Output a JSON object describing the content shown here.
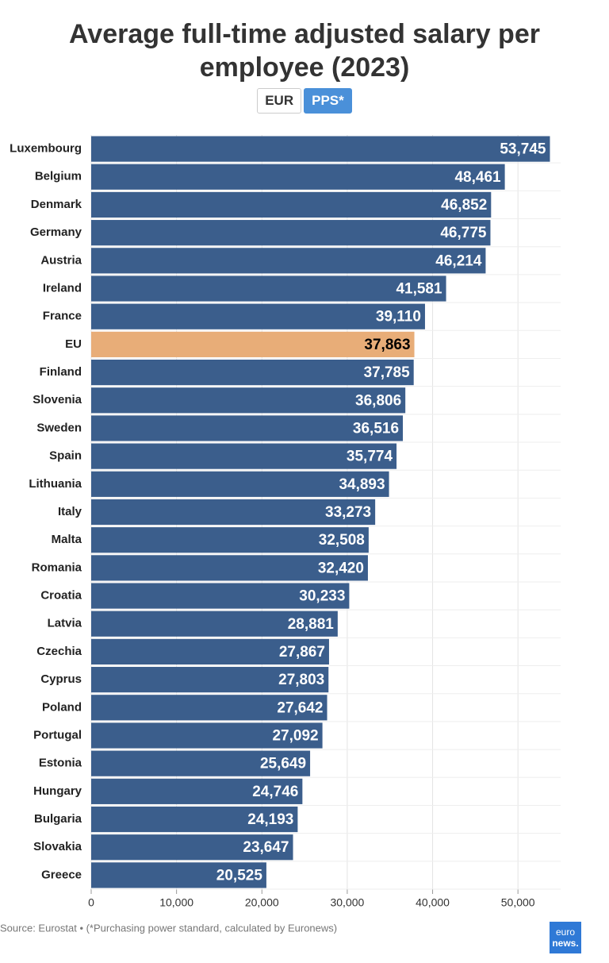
{
  "chart_data": {
    "type": "bar",
    "orientation": "horizontal",
    "title": "Average full-time adjusted salary per employee (2023)",
    "buttons": [
      "EUR",
      "PPS*"
    ],
    "categories": [
      "Luxembourg",
      "Belgium",
      "Denmark",
      "Germany",
      "Austria",
      "Ireland",
      "France",
      "EU",
      "Finland",
      "Slovenia",
      "Sweden",
      "Spain",
      "Lithuania",
      "Italy",
      "Malta",
      "Romania",
      "Croatia",
      "Latvia",
      "Czechia",
      "Cyprus",
      "Poland",
      "Portugal",
      "Estonia",
      "Hungary",
      "Bulgaria",
      "Slovakia",
      "Greece"
    ],
    "values": [
      53745,
      48461,
      46852,
      46775,
      46214,
      41581,
      39110,
      37863,
      37785,
      36806,
      36516,
      35774,
      34893,
      33273,
      32508,
      32420,
      30233,
      28881,
      27867,
      27803,
      27642,
      27092,
      25649,
      24746,
      24193,
      23647,
      20525
    ],
    "value_labels": [
      "53,745",
      "48,461",
      "46,852",
      "46,775",
      "46,214",
      "41,581",
      "39,110",
      "37,863",
      "37,785",
      "36,806",
      "36,516",
      "35,774",
      "34,893",
      "33,273",
      "32,508",
      "32,420",
      "30,233",
      "28,881",
      "27,867",
      "27,803",
      "27,642",
      "27,092",
      "25,649",
      "24,746",
      "24,193",
      "23,647",
      "20,525"
    ],
    "colors": [
      "#3b5e8c",
      "#3b5e8c",
      "#3b5e8c",
      "#3b5e8c",
      "#3b5e8c",
      "#3b5e8c",
      "#3b5e8c",
      "#e8ad78",
      "#3b5e8c",
      "#3b5e8c",
      "#3b5e8c",
      "#3b5e8c",
      "#3b5e8c",
      "#3b5e8c",
      "#3b5e8c",
      "#3b5e8c",
      "#3b5e8c",
      "#3b5e8c",
      "#3b5e8c",
      "#3b5e8c",
      "#3b5e8c",
      "#3b5e8c",
      "#3b5e8c",
      "#3b5e8c",
      "#3b5e8c",
      "#3b5e8c",
      "#3b5e8c"
    ],
    "xlim": [
      0,
      55000
    ],
    "xticks": [
      0,
      {
        "value": 10000,
        "label": "10,000"
      },
      {
        "value": 20000,
        "label": "20,000"
      },
      {
        "value": 30000,
        "label": "30,000"
      },
      {
        "value": 40000,
        "label": "40,000"
      },
      {
        "value": 50000,
        "label": "50,000"
      }
    ],
    "grid": true,
    "source": "Source: Eurostat • (*Purchasing power standard, calculated by Euronews)",
    "logo": [
      "euro",
      "news."
    ]
  }
}
